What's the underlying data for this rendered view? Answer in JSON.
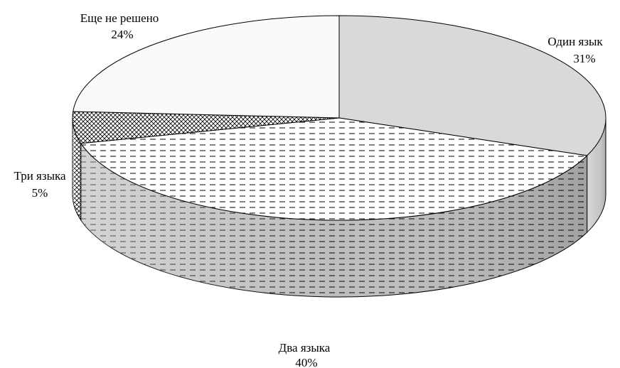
{
  "chart_data": {
    "type": "pie",
    "style": "3d",
    "slices": [
      {
        "label": "Один язык",
        "value": 31,
        "pct_label": "31%",
        "fill": "#d9d9d9",
        "pattern": "solid"
      },
      {
        "label": "Два языка",
        "value": 40,
        "pct_label": "40%",
        "fill": "#ffffff",
        "pattern": "dashes"
      },
      {
        "label": "Три языка",
        "value": 5,
        "pct_label": "5%",
        "fill": "#ffffff",
        "pattern": "crosshatch"
      },
      {
        "label": "Еще не решено",
        "value": 24,
        "pct_label": "24%",
        "fill": "#fafafa",
        "pattern": "solid"
      }
    ],
    "legend": "none",
    "data_labels": "outside"
  }
}
